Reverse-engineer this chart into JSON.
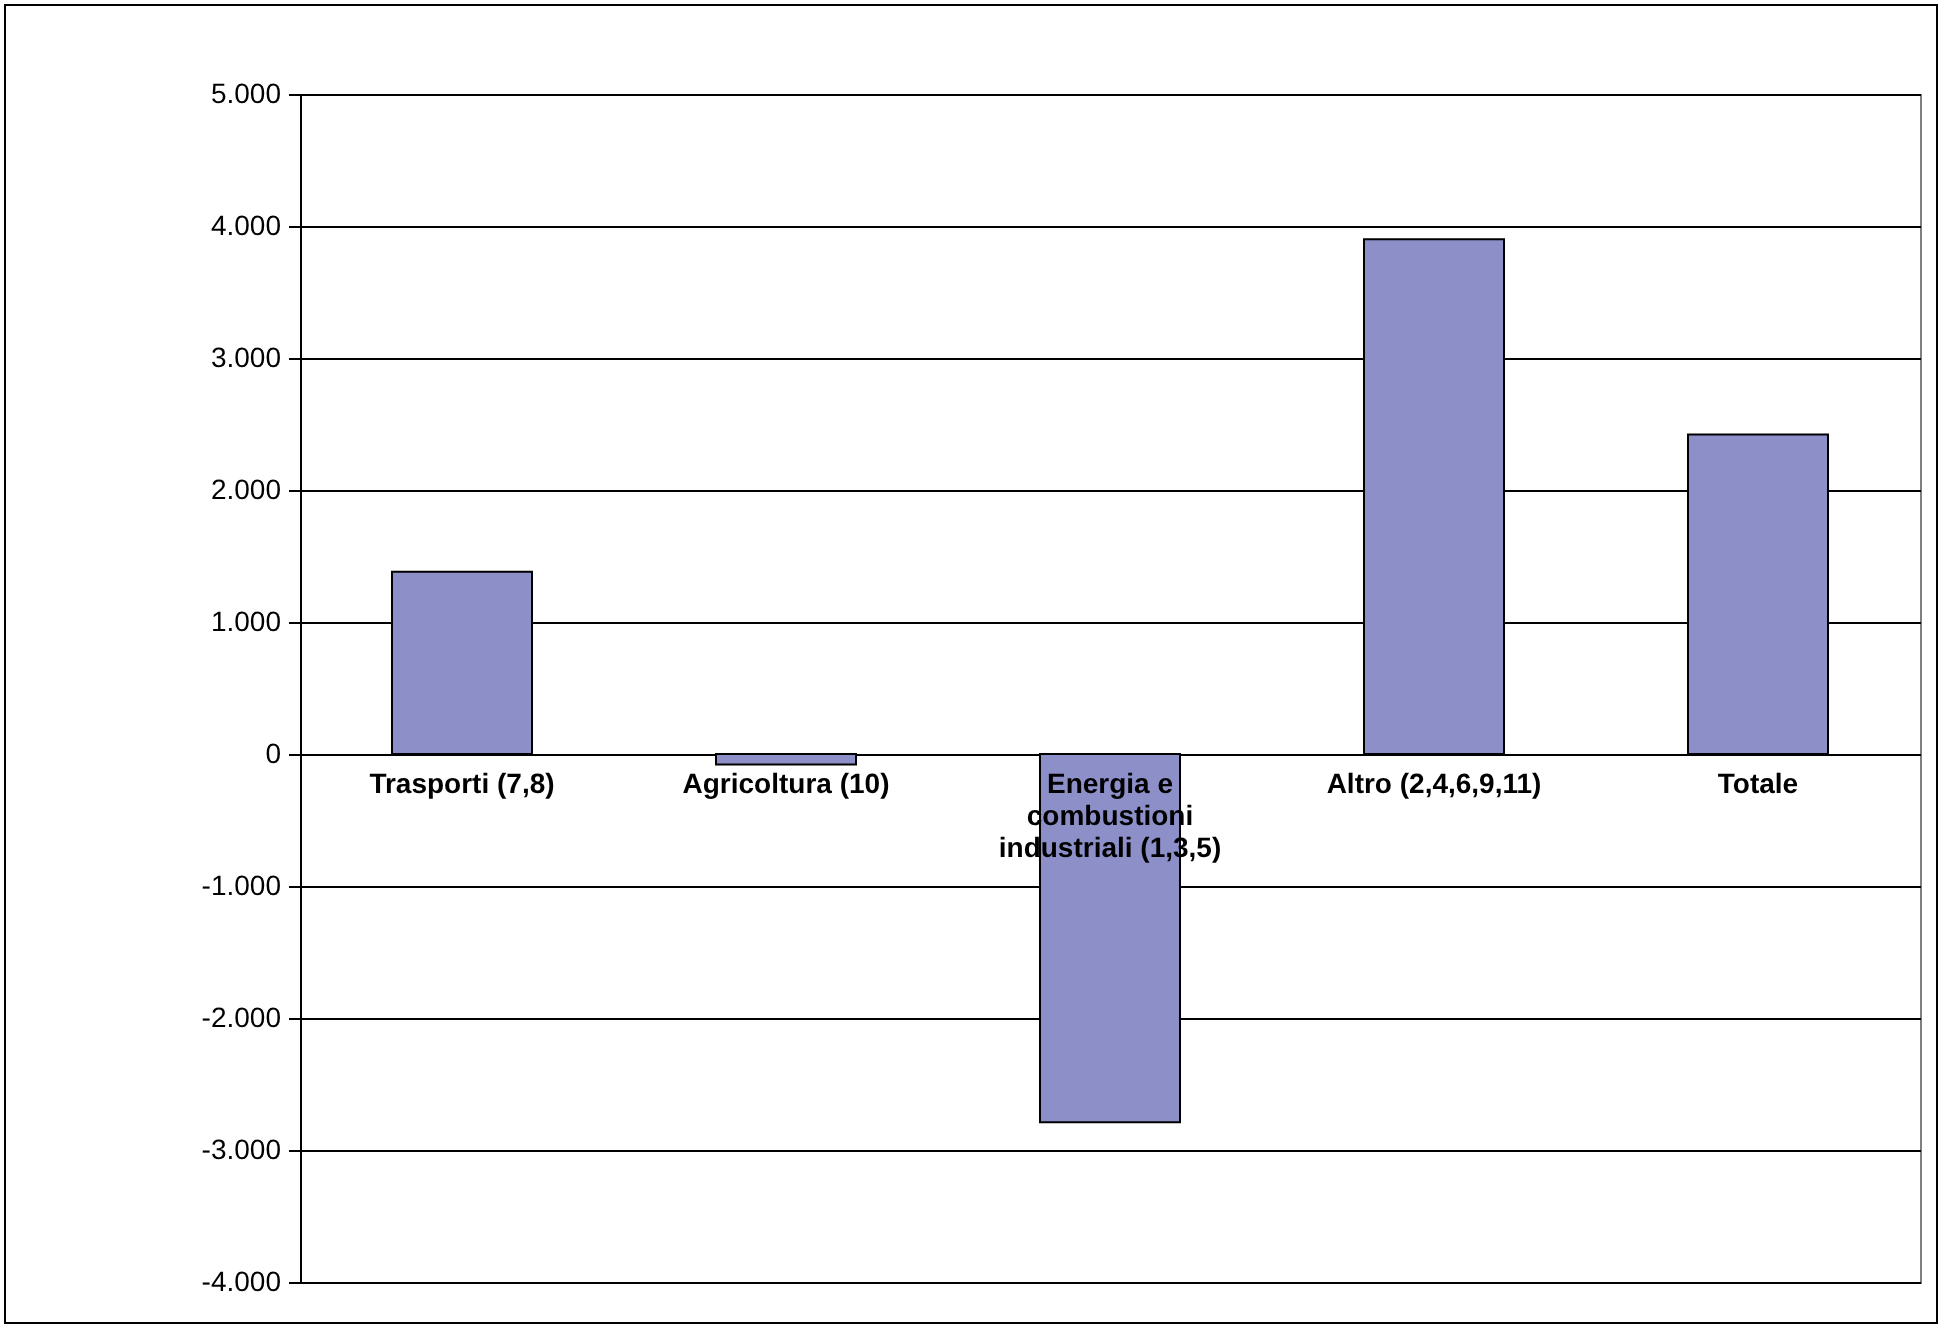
{
  "chart_data": {
    "type": "bar",
    "categories": [
      "Trasporti (7,8)",
      "Agricoltura (10)",
      "Energia e combustioni industriali (1,3,5)",
      "Altro (2,4,6,9,11)",
      "Totale"
    ],
    "values": [
      1380,
      -80,
      -2790,
      3900,
      2420
    ],
    "color": "#8c8fc8",
    "ylim": [
      -4000,
      5000
    ],
    "yticks": [
      {
        "value": -4000,
        "label": "-4.000"
      },
      {
        "value": -3000,
        "label": "-3.000"
      },
      {
        "value": -2000,
        "label": "-2.000"
      },
      {
        "value": -1000,
        "label": "-1.000"
      },
      {
        "value": 0,
        "label": "0"
      },
      {
        "value": 1000,
        "label": "1.000"
      },
      {
        "value": 2000,
        "label": "2.000"
      },
      {
        "value": 3000,
        "label": "3.000"
      },
      {
        "value": 4000,
        "label": "4.000"
      },
      {
        "value": 5000,
        "label": "5.000"
      }
    ],
    "grid": "y"
  }
}
